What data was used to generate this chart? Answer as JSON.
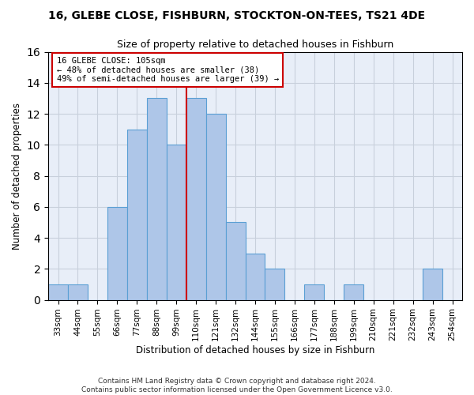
{
  "title": "16, GLEBE CLOSE, FISHBURN, STOCKTON-ON-TEES, TS21 4DE",
  "subtitle": "Size of property relative to detached houses in Fishburn",
  "xlabel": "Distribution of detached houses by size in Fishburn",
  "ylabel": "Number of detached properties",
  "bin_labels": [
    "33sqm",
    "44sqm",
    "55sqm",
    "66sqm",
    "77sqm",
    "88sqm",
    "99sqm",
    "110sqm",
    "121sqm",
    "132sqm",
    "144sqm",
    "155sqm",
    "166sqm",
    "177sqm",
    "188sqm",
    "199sqm",
    "210sqm",
    "221sqm",
    "232sqm",
    "243sqm",
    "254sqm"
  ],
  "bar_heights": [
    1,
    1,
    0,
    6,
    11,
    13,
    10,
    13,
    12,
    5,
    3,
    2,
    0,
    1,
    0,
    1,
    0,
    0,
    0,
    2,
    0
  ],
  "bar_color": "#aec6e8",
  "bar_edge_color": "#5a9fd4",
  "vline_x": 6.5,
  "vline_color": "#cc0000",
  "annotation_text": "16 GLEBE CLOSE: 105sqm\n← 48% of detached houses are smaller (38)\n49% of semi-detached houses are larger (39) →",
  "annotation_box_color": "#cc0000",
  "ylim": [
    0,
    16
  ],
  "yticks": [
    0,
    2,
    4,
    6,
    8,
    10,
    12,
    14,
    16
  ],
  "grid_color": "#c8d0dc",
  "background_color": "#e8eef8",
  "footer_line1": "Contains HM Land Registry data © Crown copyright and database right 2024.",
  "footer_line2": "Contains public sector information licensed under the Open Government Licence v3.0."
}
